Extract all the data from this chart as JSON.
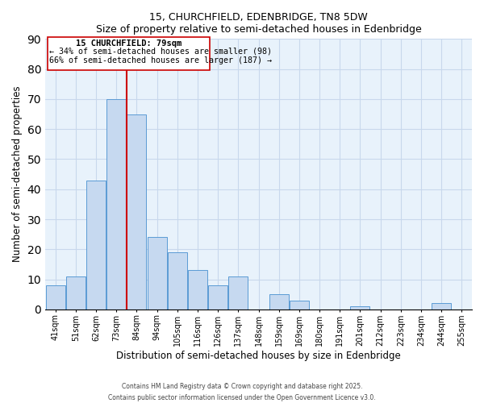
{
  "title": "15, CHURCHFIELD, EDENBRIDGE, TN8 5DW",
  "subtitle": "Size of property relative to semi-detached houses in Edenbridge",
  "xlabel": "Distribution of semi-detached houses by size in Edenbridge",
  "ylabel": "Number of semi-detached properties",
  "bar_color": "#c6d9f0",
  "bar_edge_color": "#5b9bd5",
  "grid_color": "#c8d8ec",
  "bg_color": "#e8f2fb",
  "categories": [
    "41sqm",
    "51sqm",
    "62sqm",
    "73sqm",
    "84sqm",
    "94sqm",
    "105sqm",
    "116sqm",
    "126sqm",
    "137sqm",
    "148sqm",
    "159sqm",
    "169sqm",
    "180sqm",
    "191sqm",
    "201sqm",
    "212sqm",
    "223sqm",
    "234sqm",
    "244sqm",
    "255sqm"
  ],
  "values": [
    8,
    11,
    43,
    70,
    65,
    24,
    19,
    13,
    8,
    11,
    0,
    5,
    3,
    0,
    0,
    1,
    0,
    0,
    0,
    2,
    0
  ],
  "property_line_color": "#cc0000",
  "annotation_title": "15 CHURCHFIELD: 79sqm",
  "annotation_line1": "← 34% of semi-detached houses are smaller (98)",
  "annotation_line2": "66% of semi-detached houses are larger (187) →",
  "ylim": [
    0,
    90
  ],
  "yticks": [
    0,
    10,
    20,
    30,
    40,
    50,
    60,
    70,
    80,
    90
  ],
  "footnote1": "Contains HM Land Registry data © Crown copyright and database right 2025.",
  "footnote2": "Contains public sector information licensed under the Open Government Licence v3.0."
}
